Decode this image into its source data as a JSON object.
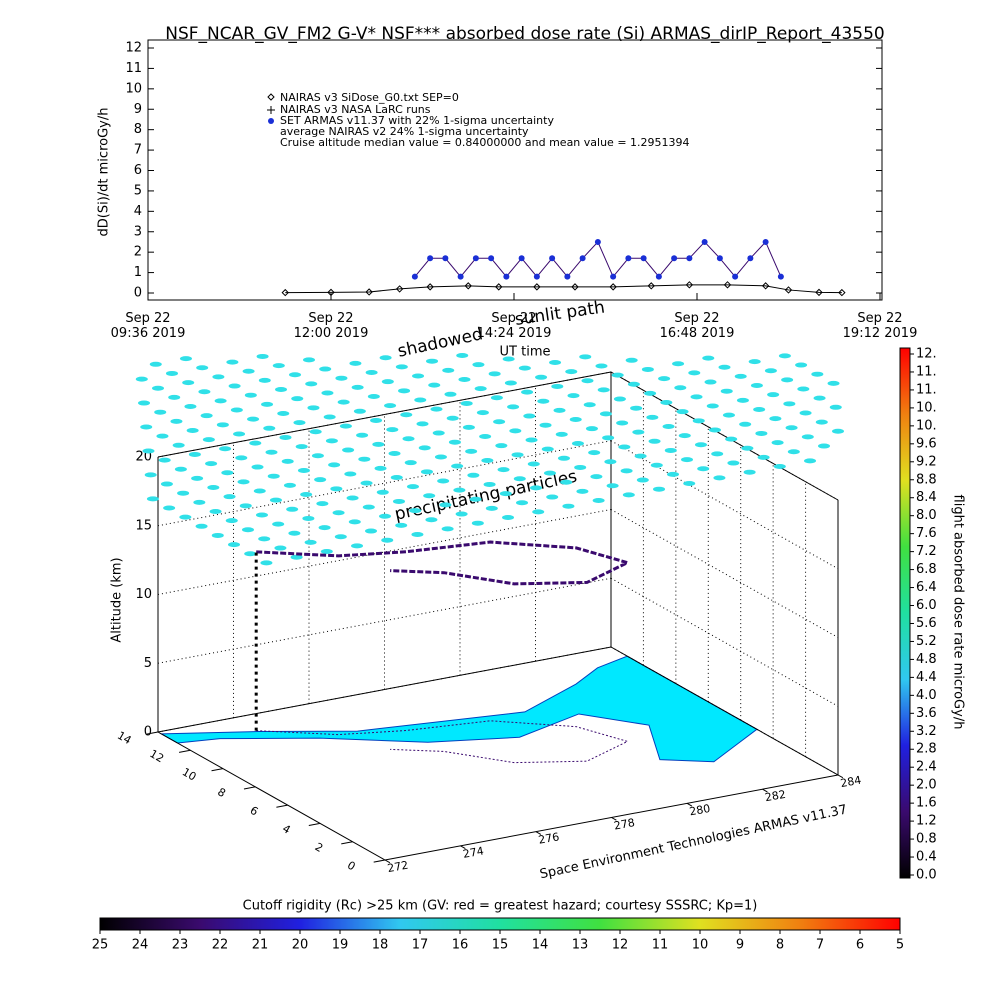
{
  "chart_data": [
    {
      "type": "line",
      "title": "NSF_NCAR_GV_FM2 G-V* NSF*** absorbed dose rate (Si) ARMAS_dirIP_Report_43550",
      "ylabel": "dD(Si)/dt microGy/h",
      "xlabel": "UT time",
      "xlim": [
        9.6,
        19.2
      ],
      "xticks": [
        {
          "value": 9.6,
          "label": "Sep 22\n09:36 2019"
        },
        {
          "value": 12,
          "label": "Sep 22\n12:00 2019"
        },
        {
          "value": 14.4,
          "label": "Sep 22\n14:24 2019"
        },
        {
          "value": 16.8,
          "label": "Sep 22\n16:48 2019"
        },
        {
          "value": 19.2,
          "label": "Sep 22\n19:12 2019"
        }
      ],
      "ylim": [
        0,
        12
      ],
      "yticks": [
        0,
        1,
        2,
        3,
        4,
        5,
        6,
        7,
        8,
        9,
        10,
        11,
        12
      ],
      "series": [
        {
          "name": "NAIRAS v3 SiDose_G0.txt SEP=0",
          "color": "#000000",
          "x": [
            11.4,
            12.0,
            12.5,
            12.9,
            13.3,
            13.8,
            14.2,
            14.7,
            15.2,
            15.7,
            16.2,
            16.7,
            17.2,
            17.7,
            18.0,
            18.4,
            18.7
          ],
          "values": [
            0.02,
            0.03,
            0.05,
            0.2,
            0.3,
            0.35,
            0.3,
            0.3,
            0.3,
            0.3,
            0.35,
            0.4,
            0.4,
            0.35,
            0.15,
            0.03,
            0.02
          ]
        },
        {
          "name": "SET ARMAS v11.37 with 22% 1-sigma uncertainty",
          "color": "#1a2fd6",
          "x": [
            13.1,
            13.3,
            13.5,
            13.7,
            13.9,
            14.1,
            14.3,
            14.5,
            14.7,
            14.9,
            15.1,
            15.3,
            15.5,
            15.7,
            15.9,
            16.1,
            16.3,
            16.5,
            16.7,
            16.9,
            17.1,
            17.3,
            17.5,
            17.7,
            17.9
          ],
          "values": [
            0.8,
            1.7,
            1.7,
            0.8,
            1.7,
            1.7,
            0.8,
            1.7,
            0.8,
            1.7,
            0.8,
            1.7,
            2.5,
            0.8,
            1.7,
            1.7,
            0.8,
            1.7,
            1.7,
            2.5,
            1.7,
            0.8,
            1.7,
            2.5,
            0.8
          ]
        }
      ],
      "notes": [
        "NAIRAS v3 NASA LaRC runs",
        "average NAIRAS v2 24% 1-sigma uncertainty",
        "Cruise altitude median value = 0.84000000 and mean value = 1.2951394"
      ]
    },
    {
      "type": "surface3d",
      "zlabel": "Altitude (km)",
      "zlim": [
        0,
        20
      ],
      "zticks": [
        0,
        5,
        10,
        15,
        20
      ],
      "ylim": [
        0,
        14
      ],
      "yticks": [
        0,
        2,
        4,
        6,
        8,
        10,
        12,
        14
      ],
      "xlim": [
        272,
        284
      ],
      "xticks": [
        272,
        274,
        276,
        278,
        280,
        282,
        284
      ],
      "annotations": [
        "shadowed",
        "sunlit path",
        "precipitating particles",
        "Space Environment Technologies ARMAS v11.37"
      ]
    },
    {
      "type": "colorbar",
      "orientation": "vertical",
      "label": "flight absorbed dose rate microGy/h",
      "lim": [
        0,
        11.6
      ],
      "colors": [
        "#000000",
        "#3a0a6e",
        "#2020e0",
        "#30c8f0",
        "#20e0a0",
        "#40e040",
        "#e0e020",
        "#f08010",
        "#ff0000"
      ],
      "ticks": [
        {
          "value": 0,
          "label": "0.0"
        },
        0.4,
        0.8,
        1.2,
        1.6,
        {
          "value": 2,
          "label": "2.0"
        },
        2.4,
        2.8,
        3.2,
        3.6,
        {
          "value": 4,
          "label": "4.0"
        },
        4.4,
        4.8,
        5.2,
        5.6,
        {
          "value": 6,
          "label": "6.0"
        },
        6.4,
        6.8,
        7.2,
        7.6,
        {
          "value": 8,
          "label": "8.0"
        },
        8.4,
        8.8,
        9.2,
        9.6,
        {
          "value": 10,
          "label": "10."
        },
        {
          "value": 10.4,
          "label": "10."
        },
        {
          "value": 10.8,
          "label": "11."
        },
        {
          "value": 11.2,
          "label": "11."
        },
        {
          "value": 11.6,
          "label": "12."
        }
      ]
    },
    {
      "type": "colorbar",
      "orientation": "horizontal",
      "label": "Cutoff rigidity (Rc) >25 km (GV: red = greatest hazard; courtesy SSSRC; Kp=1)",
      "lim": [
        25,
        5
      ],
      "colors": [
        "#000000",
        "#3a0a6e",
        "#2020e0",
        "#30c8f0",
        "#20e0a0",
        "#40e040",
        "#e0e020",
        "#f08010",
        "#ff0000"
      ],
      "ticks": [
        25,
        24,
        23,
        22,
        21,
        20,
        19,
        18,
        17,
        16,
        15,
        14,
        13,
        12,
        11,
        10,
        9,
        8,
        7,
        6,
        5
      ]
    }
  ]
}
